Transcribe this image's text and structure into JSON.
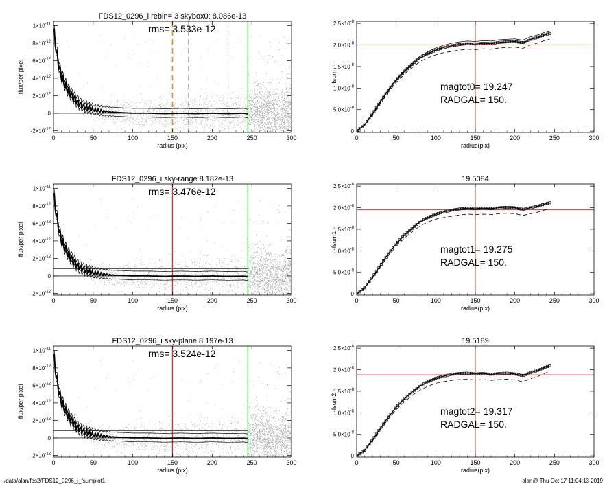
{
  "page": {
    "footer_left": "/data/alan/fds2/FDS12_0296_i_fsumplot1",
    "footer_right": "alan@  Thu Oct 17 11:04:13 2019"
  },
  "colors": {
    "axis": "#000000",
    "scatter": "#9e9e9e",
    "profile": "#000000",
    "red_marker": "#e03030",
    "green_marker": "#22cc22",
    "orange_marker": "#ee8a1e",
    "dashed_gray": "#9a9a9a"
  },
  "chart_data": [
    {
      "type": "scatter",
      "id": "profile-1",
      "title": "FDS12_0296_i rebin= 3    skybox0:  8.086e-13",
      "annotation": "rms= 3.533e-12",
      "xlabel": "radius (pix)",
      "ylabel": "flux/per pixel",
      "xlim": [
        0,
        300
      ],
      "ylim": [
        -2.2e-12,
        1.05e-11
      ],
      "xticks": [
        0,
        50,
        100,
        150,
        200,
        250,
        300
      ],
      "yticks": [
        {
          "v": 1e-11,
          "m": "1×10",
          "e": "-11"
        },
        {
          "v": 8e-12,
          "m": "8×10",
          "e": "-12"
        },
        {
          "v": 6e-12,
          "m": "6×10",
          "e": "-12"
        },
        {
          "v": 4e-12,
          "m": "4×10",
          "e": "-12"
        },
        {
          "v": 2e-12,
          "m": "2×10",
          "e": "-12"
        },
        {
          "v": 0,
          "m": "0",
          "e": ""
        },
        {
          "v": -2e-12,
          "m": "-2×10",
          "e": "-12"
        }
      ],
      "hlines": [
        0,
        8.086e-13
      ],
      "vlines": [
        {
          "x": 150,
          "style": "orange-dashed"
        },
        {
          "x": 170,
          "style": "gray-dashed"
        },
        {
          "x": 220,
          "style": "gray-dashed"
        },
        {
          "x": 245,
          "style": "green"
        }
      ],
      "profile": {
        "x": [
          1,
          3,
          5,
          8,
          10,
          12,
          15,
          18,
          20,
          25,
          30,
          35,
          40,
          45,
          50,
          55,
          60,
          70,
          80,
          90,
          100,
          120,
          140,
          160,
          180,
          200,
          220,
          240,
          245
        ],
        "y": [
          9e-12,
          7.5e-12,
          6.3e-12,
          4.9e-12,
          4.2e-12,
          3.8e-12,
          3.2e-12,
          2.7e-12,
          2.4e-12,
          1.8e-12,
          1.3e-12,
          9e-13,
          7e-13,
          5e-13,
          4e-13,
          3e-13,
          2.5e-13,
          1.5e-13,
          1e-13,
          5e-14,
          0.0,
          0.0,
          -5e-14,
          0.0,
          -5e-14,
          0.0,
          -5e-14,
          0.0,
          -1e-13
        ]
      }
    },
    {
      "type": "line",
      "id": "curve-1",
      "title": "",
      "xlabel": "radius(pix)",
      "ylabel": "fsum",
      "xlim": [
        0,
        300
      ],
      "ylim": [
        -3e-10,
        2.55e-08
      ],
      "xticks": [
        0,
        50,
        100,
        150,
        200,
        250,
        300
      ],
      "yticks": [
        {
          "v": 2.5e-08,
          "m": "2.5×10",
          "e": "-8"
        },
        {
          "v": 2e-08,
          "m": "2.0×10",
          "e": "-8"
        },
        {
          "v": 1.5e-08,
          "m": "1.5×10",
          "e": "-8"
        },
        {
          "v": 1e-08,
          "m": "1.0×10",
          "e": "-8"
        },
        {
          "v": 5e-09,
          "m": "5.0×10",
          "e": "-9"
        },
        {
          "v": 0,
          "m": "0",
          "e": ""
        }
      ],
      "hline": 2e-08,
      "vline": 150,
      "text_lines": [
        "magtot0=  19.247",
        "RADGAL=    150."
      ],
      "curve": {
        "x": [
          0,
          10,
          20,
          30,
          40,
          50,
          60,
          70,
          80,
          90,
          100,
          110,
          120,
          130,
          140,
          150,
          160,
          170,
          180,
          190,
          200,
          210,
          220,
          230,
          240,
          245
        ],
        "y": [
          0,
          1.5e-09,
          4e-09,
          6.8e-09,
          9.5e-09,
          1.18e-08,
          1.38e-08,
          1.55e-08,
          1.7e-08,
          1.8e-08,
          1.88e-08,
          1.94e-08,
          1.98e-08,
          2.01e-08,
          2.03e-08,
          2.02e-08,
          2.04e-08,
          2.03e-08,
          2.06e-08,
          2.07e-08,
          2.08e-08,
          2.05e-08,
          2.13e-08,
          2.18e-08,
          2.25e-08,
          2.27e-08
        ]
      },
      "upper_offset": 6e-10,
      "lower_offset": 1.3e-09
    },
    {
      "type": "scatter",
      "id": "profile-2",
      "title": "FDS12_0296_i sky-range  8.182e-13",
      "annotation": "rms= 3.476e-12",
      "xlabel": "radius (pix)",
      "ylabel": "flux/per pixel",
      "xlim": [
        0,
        300
      ],
      "ylim": [
        -2.2e-12,
        1.05e-11
      ],
      "xticks": [
        0,
        50,
        100,
        150,
        200,
        250,
        300
      ],
      "yticks": [
        {
          "v": 1e-11,
          "m": "1×10",
          "e": "-11"
        },
        {
          "v": 8e-12,
          "m": "8×10",
          "e": "-12"
        },
        {
          "v": 6e-12,
          "m": "6×10",
          "e": "-12"
        },
        {
          "v": 4e-12,
          "m": "4×10",
          "e": "-12"
        },
        {
          "v": 2e-12,
          "m": "2×10",
          "e": "-12"
        },
        {
          "v": 0,
          "m": "0",
          "e": ""
        },
        {
          "v": -2e-12,
          "m": "-2×10",
          "e": "-12"
        }
      ],
      "hlines": [
        0,
        8.182e-13
      ],
      "vlines": [
        {
          "x": 150,
          "style": "red"
        },
        {
          "x": 245,
          "style": "green"
        }
      ],
      "profile": {
        "x": [
          1,
          3,
          5,
          8,
          10,
          12,
          15,
          18,
          20,
          25,
          30,
          35,
          40,
          45,
          50,
          55,
          60,
          70,
          80,
          90,
          100,
          120,
          140,
          160,
          180,
          200,
          220,
          240,
          245
        ],
        "y": [
          8.8e-12,
          7.4e-12,
          6.2e-12,
          4.8e-12,
          4.1e-12,
          3.7e-12,
          3.1e-12,
          2.6e-12,
          2.3e-12,
          1.7e-12,
          1.2e-12,
          8.5e-13,
          6.5e-13,
          4.5e-13,
          3.5e-13,
          2.8e-13,
          2.2e-13,
          1.2e-13,
          8e-14,
          4e-14,
          0.0,
          0.0,
          -4e-14,
          0.0,
          -4e-14,
          0.0,
          -5e-14,
          -2e-14,
          -1e-13
        ]
      }
    },
    {
      "type": "line",
      "id": "curve-2",
      "title": "19.5084",
      "xlabel": "radius(pix)",
      "ylabel": "fsum1",
      "xlim": [
        0,
        300
      ],
      "ylim": [
        -3e-10,
        2.55e-08
      ],
      "xticks": [
        0,
        50,
        100,
        150,
        200,
        250,
        300
      ],
      "yticks": [
        {
          "v": 2.5e-08,
          "m": "2.5×10",
          "e": "-8"
        },
        {
          "v": 2e-08,
          "m": "2.0×10",
          "e": "-8"
        },
        {
          "v": 1.5e-08,
          "m": "1.5×10",
          "e": "-8"
        },
        {
          "v": 1e-08,
          "m": "1.0×10",
          "e": "-8"
        },
        {
          "v": 5e-09,
          "m": "5.0×10",
          "e": "-9"
        },
        {
          "v": 0,
          "m": "0",
          "e": ""
        }
      ],
      "hline": 1.95e-08,
      "vline": 150,
      "text_lines": [
        "magtot1=  19.275",
        "RADGAL=    150."
      ],
      "curve": {
        "x": [
          0,
          10,
          20,
          30,
          40,
          50,
          60,
          70,
          80,
          90,
          100,
          110,
          120,
          130,
          140,
          150,
          160,
          170,
          180,
          190,
          200,
          210,
          220,
          230,
          240,
          245
        ],
        "y": [
          0,
          1.4e-09,
          3.9e-09,
          6.6e-09,
          9.3e-09,
          1.16e-08,
          1.36e-08,
          1.52e-08,
          1.67e-08,
          1.77e-08,
          1.85e-08,
          1.9e-08,
          1.94e-08,
          1.97e-08,
          1.99e-08,
          1.98e-08,
          1.99e-08,
          1.98e-08,
          2e-08,
          2.01e-08,
          2e-08,
          1.96e-08,
          2e-08,
          2.04e-08,
          2.1e-08,
          2.12e-08
        ]
      },
      "upper_offset": 0.0,
      "lower_offset": 1.4e-09
    },
    {
      "type": "scatter",
      "id": "profile-3",
      "title": "FDS12_0296_i sky-plane  8.197e-13",
      "annotation": "rms= 3.524e-12",
      "xlabel": "radius (pix)",
      "ylabel": "flux/per pixel",
      "xlim": [
        0,
        300
      ],
      "ylim": [
        -2.2e-12,
        1.05e-11
      ],
      "xticks": [
        0,
        50,
        100,
        150,
        200,
        250,
        300
      ],
      "yticks": [
        {
          "v": 1e-11,
          "m": "1×10",
          "e": "-11"
        },
        {
          "v": 8e-12,
          "m": "8×10",
          "e": "-12"
        },
        {
          "v": 6e-12,
          "m": "6×10",
          "e": "-12"
        },
        {
          "v": 4e-12,
          "m": "4×10",
          "e": "-12"
        },
        {
          "v": 2e-12,
          "m": "2×10",
          "e": "-12"
        },
        {
          "v": 0,
          "m": "0",
          "e": ""
        },
        {
          "v": -2e-12,
          "m": "-2×10",
          "e": "-12"
        }
      ],
      "hlines": [
        0,
        8.197e-13
      ],
      "vlines": [
        {
          "x": 150,
          "style": "red"
        },
        {
          "x": 245,
          "style": "green"
        }
      ],
      "profile": {
        "x": [
          1,
          3,
          5,
          8,
          10,
          12,
          15,
          18,
          20,
          25,
          30,
          35,
          40,
          45,
          50,
          55,
          60,
          70,
          80,
          90,
          100,
          120,
          140,
          160,
          180,
          200,
          220,
          240,
          245
        ],
        "y": [
          8.9e-12,
          7.4e-12,
          6.2e-12,
          4.85e-12,
          4.15e-12,
          3.75e-12,
          3.15e-12,
          2.65e-12,
          2.35e-12,
          1.75e-12,
          1.25e-12,
          8.8e-13,
          6.8e-13,
          4.8e-13,
          3.8e-13,
          3e-13,
          2.4e-13,
          1.4e-13,
          9e-14,
          5e-14,
          0.0,
          0.0,
          -4e-14,
          0.0,
          -5e-14,
          0.0,
          -5e-14,
          -2e-14,
          -1e-13
        ]
      }
    },
    {
      "type": "line",
      "id": "curve-3",
      "title": "19.5189",
      "xlabel": "radius(pix)",
      "ylabel": "fsum2",
      "xlim": [
        0,
        300
      ],
      "ylim": [
        -3e-10,
        2.55e-08
      ],
      "xticks": [
        0,
        50,
        100,
        150,
        200,
        250,
        300
      ],
      "yticks": [
        {
          "v": 2.5e-08,
          "m": "2.5×10",
          "e": "-8"
        },
        {
          "v": 2e-08,
          "m": "2.0×10",
          "e": "-8"
        },
        {
          "v": 1.5e-08,
          "m": "1.5×10",
          "e": "-8"
        },
        {
          "v": 1e-08,
          "m": "1.0×10",
          "e": "-8"
        },
        {
          "v": 5e-09,
          "m": "5.0×10",
          "e": "-9"
        },
        {
          "v": 0,
          "m": "0",
          "e": ""
        }
      ],
      "hline": 1.88e-08,
      "vline": 150,
      "text_lines": [
        "magtot2=  19.317",
        "RADGAL=    150."
      ],
      "curve": {
        "x": [
          0,
          10,
          20,
          30,
          40,
          50,
          60,
          70,
          80,
          90,
          100,
          110,
          120,
          130,
          140,
          150,
          160,
          170,
          180,
          190,
          200,
          210,
          220,
          230,
          240,
          245
        ],
        "y": [
          0,
          1.3e-09,
          3.7e-09,
          6.4e-09,
          9e-09,
          1.13e-08,
          1.32e-08,
          1.48e-08,
          1.62e-08,
          1.72e-08,
          1.8e-08,
          1.85e-08,
          1.89e-08,
          1.91e-08,
          1.92e-08,
          1.9e-08,
          1.91e-08,
          1.89e-08,
          1.91e-08,
          1.92e-08,
          1.9e-08,
          1.86e-08,
          1.93e-08,
          1.99e-08,
          2.07e-08,
          2.09e-08
        ]
      },
      "upper_offset": 0.0,
      "lower_offset": 1.4e-09
    }
  ]
}
